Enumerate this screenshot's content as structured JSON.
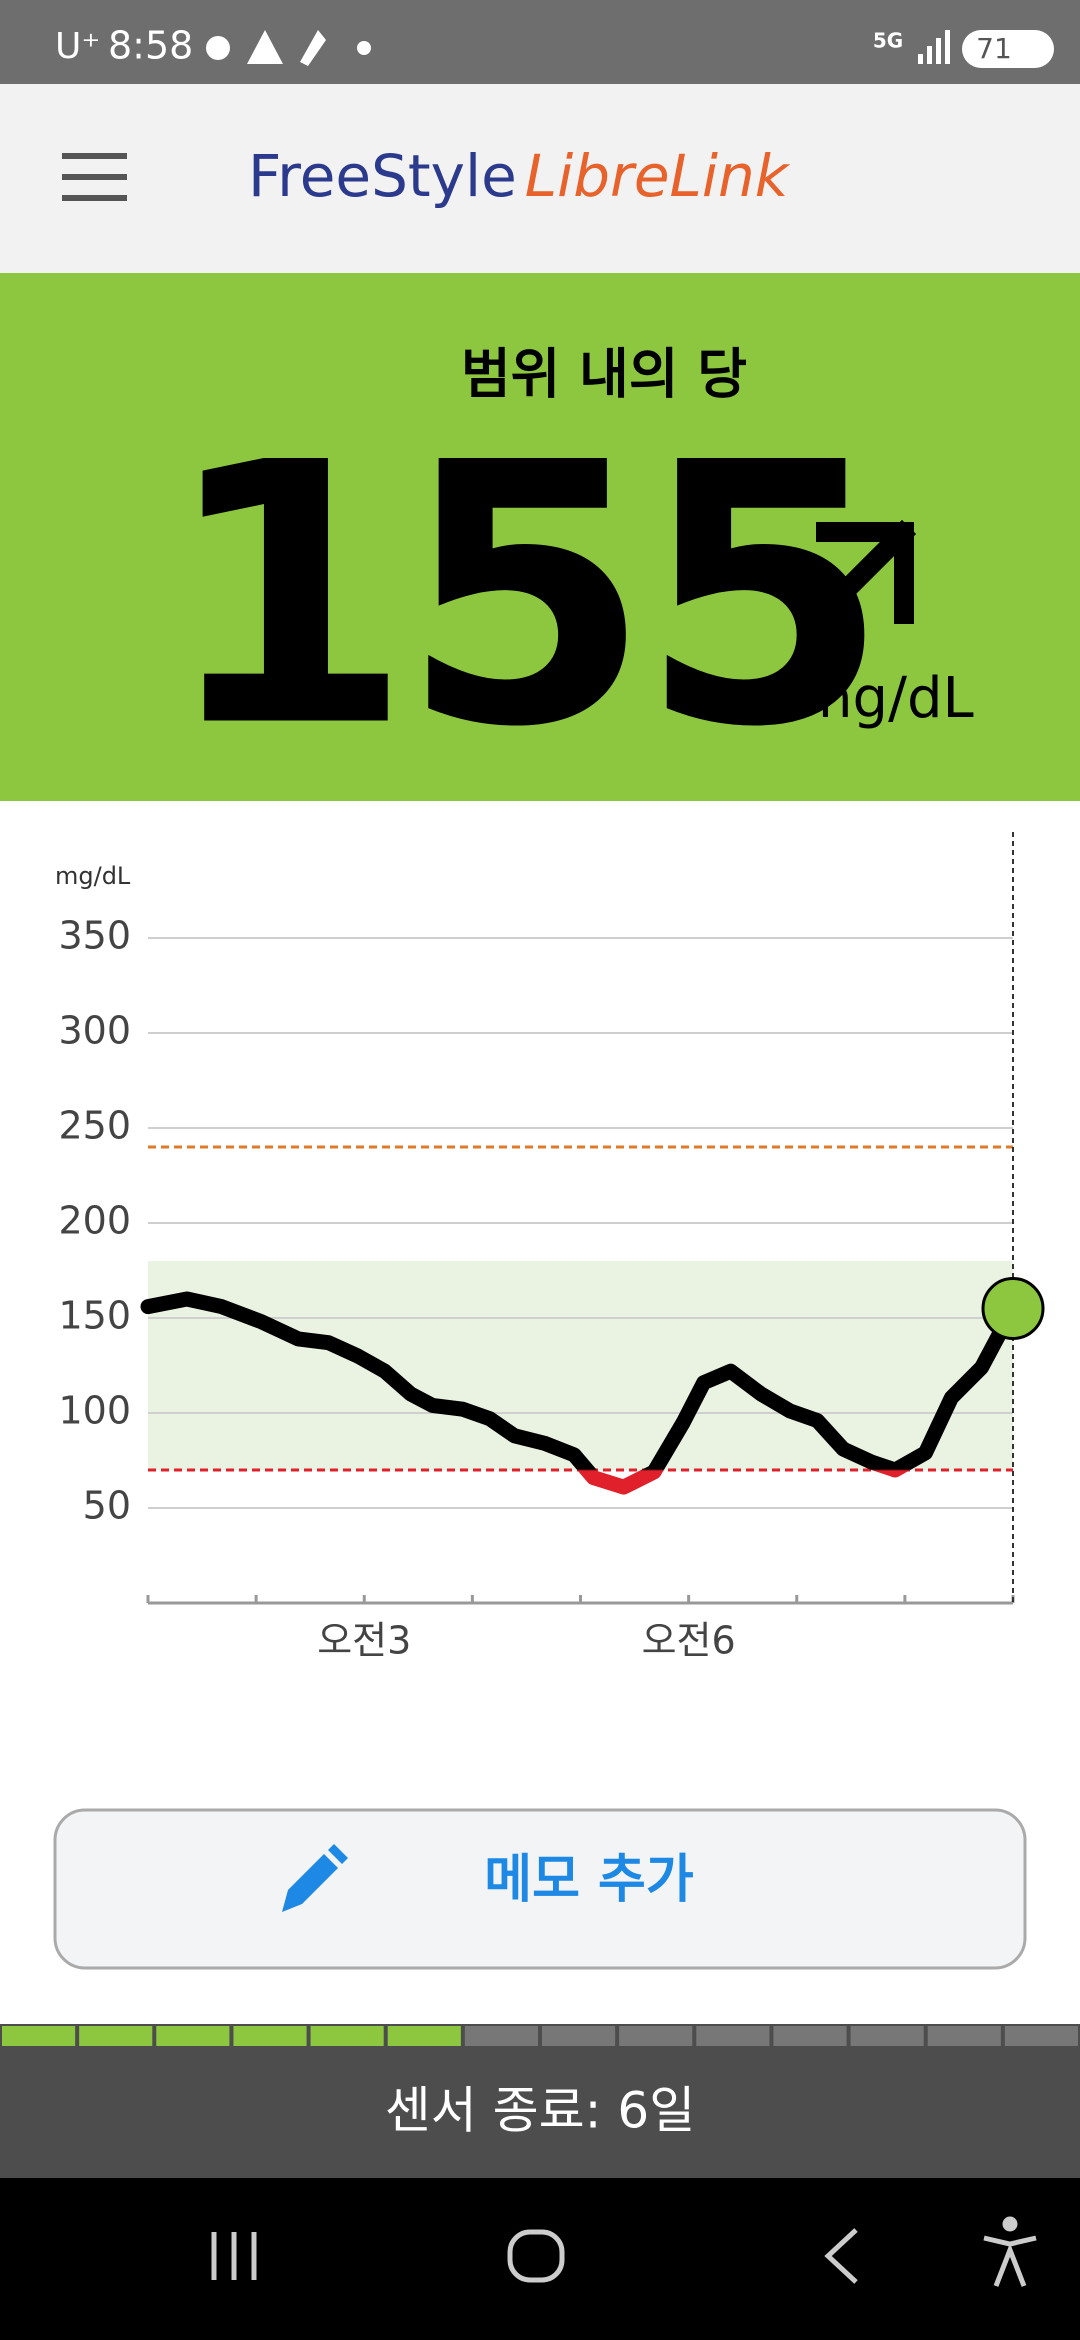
{
  "status_bar": {
    "carrier": "U⁺",
    "time": "8:58",
    "network": "5G",
    "battery": "71"
  },
  "header": {
    "logo_freestyle": "FreeStyle",
    "logo_librelink": "LibreLink"
  },
  "reading": {
    "label": "범위 내의 당",
    "value": "155",
    "unit": "mg/dL"
  },
  "chart_data": {
    "type": "line",
    "y_label": "mg/dL",
    "xlim": [
      1,
      9
    ],
    "xticks": [
      {
        "value": 3,
        "label": "오전3"
      },
      {
        "value": 6,
        "label": "오전6"
      }
    ],
    "minor_xticks": [
      1,
      2,
      4,
      5,
      7,
      8,
      9
    ],
    "ylim": [
      0,
      350
    ],
    "yticks": [
      50,
      100,
      150,
      200,
      250,
      300,
      350
    ],
    "grid": true,
    "target_range": [
      70,
      180
    ],
    "target_color": "#eaf3e1",
    "high_threshold": 240,
    "high_color": "#e07a2a",
    "low_color": "#e0202a",
    "current_color": "#8dc63f",
    "series": [
      {
        "name": "glucose",
        "color": "#000000",
        "x": [
          1.0,
          1.36,
          1.68,
          2.05,
          2.39,
          2.67,
          2.94,
          3.19,
          3.43,
          3.63,
          3.91,
          4.16,
          4.39,
          4.67,
          4.94,
          5.12,
          5.4,
          5.68,
          5.95,
          6.14,
          6.39,
          6.67,
          6.94,
          7.19,
          7.43,
          7.7,
          7.91,
          8.19,
          8.43,
          8.71,
          9.0
        ],
        "values": [
          156,
          160,
          156,
          148,
          139,
          137,
          130,
          122,
          110,
          104,
          102,
          97,
          88,
          84,
          78,
          66,
          61,
          69,
          95,
          116,
          122,
          110,
          101,
          96,
          81,
          74,
          70,
          79,
          108,
          124,
          155
        ]
      }
    ]
  },
  "memo_button": "메모 추가",
  "sensor": {
    "label": "센서 종료: 6일",
    "progress_filled": 6,
    "progress_segments": 14
  }
}
